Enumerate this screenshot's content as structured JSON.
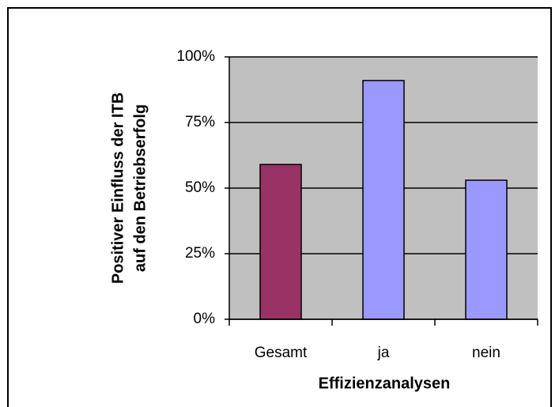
{
  "chart_data": {
    "type": "bar",
    "y_label": [
      "Positiver Einfluss der ITB",
      "auf den Betriebserfolg"
    ],
    "x_label": "Effizienzanalysen",
    "categories": [
      "Gesamt",
      "ja",
      "nein"
    ],
    "values": [
      59,
      91,
      53
    ],
    "colors": [
      "#993366",
      "#9999ff",
      "#9999ff"
    ],
    "ylim": [
      0,
      100
    ],
    "yticks": [
      {
        "value": 0,
        "label": "0%"
      },
      {
        "value": 25,
        "label": "25%"
      },
      {
        "value": 50,
        "label": "50%"
      },
      {
        "value": 75,
        "label": "75%"
      },
      {
        "value": 100,
        "label": "100%"
      }
    ],
    "grid": true,
    "plot_background": "#c0c0c0"
  }
}
